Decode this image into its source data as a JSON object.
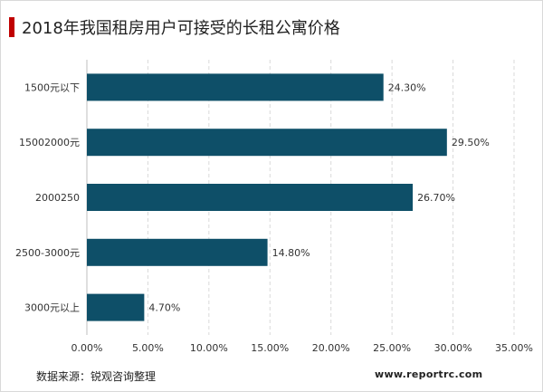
{
  "title": "2018年我国租房用户可接受的长租公寓价格",
  "footer": {
    "source": "数据来源：锐观咨询整理",
    "website": "www.reportrc.com"
  },
  "colors": {
    "bar": "#0e4f68",
    "title_accent": "#c00000",
    "grid": "#d9d9d9"
  },
  "chart_data": {
    "type": "bar",
    "orientation": "horizontal",
    "categories": [
      "1500元以下",
      "15002000元",
      "2000250",
      "2500-3000元",
      "3000元以上"
    ],
    "values": [
      24.3,
      29.5,
      26.7,
      14.8,
      4.7
    ],
    "value_labels": [
      "24.30%",
      "29.50%",
      "26.70%",
      "14.80%",
      "4.70%"
    ],
    "xlim": [
      0,
      35
    ],
    "xticks": [
      "0.00%",
      "5.00%",
      "10.00%",
      "15.00%",
      "20.00%",
      "25.00%",
      "30.00%",
      "35.00%"
    ],
    "grid": "vertical-dashed",
    "legend": "none"
  }
}
